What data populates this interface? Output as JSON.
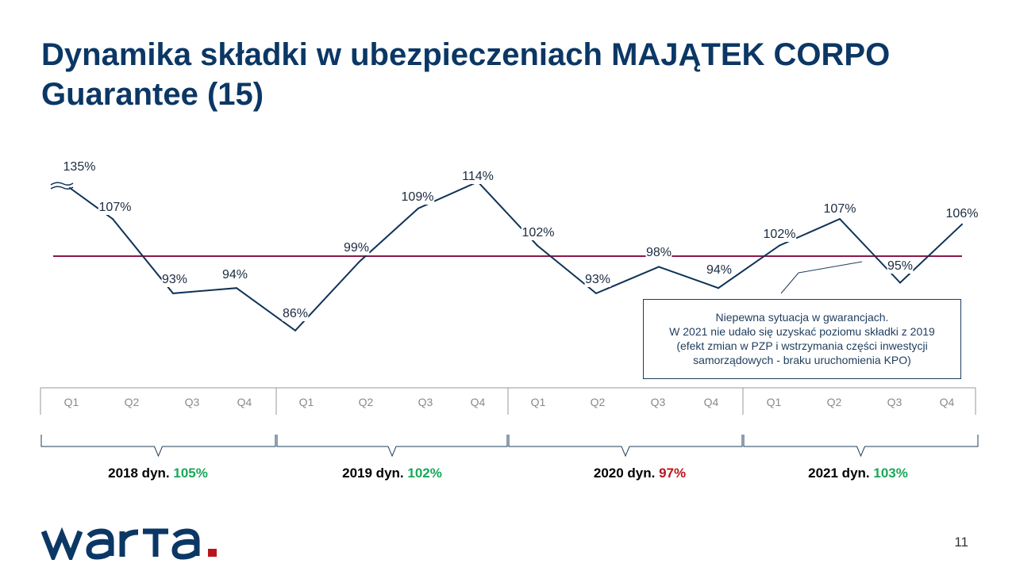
{
  "title": "Dynamika składki w ubezpieczeniach MAJĄTEK CORPO Guarantee (15)",
  "chart_data": {
    "type": "line",
    "categories": [
      "Q1",
      "Q2",
      "Q3",
      "Q4",
      "Q1",
      "Q2",
      "Q3",
      "Q4",
      "Q1",
      "Q2",
      "Q3",
      "Q4",
      "Q1",
      "Q2",
      "Q3",
      "Q4"
    ],
    "values": [
      135,
      107,
      93,
      94,
      86,
      99,
      109,
      114,
      102,
      93,
      98,
      94,
      102,
      107,
      95,
      106
    ],
    "data_labels": [
      "135%",
      "107%",
      "93%",
      "94%",
      "86%",
      "99%",
      "109%",
      "114%",
      "102%",
      "93%",
      "98%",
      "94%",
      "102%",
      "107%",
      "95%",
      "106%"
    ],
    "reference_line": 100,
    "axis_break_on_first_point": true,
    "colors": {
      "series": "#0f3358",
      "reference": "#8b1a4a",
      "axis": "#9a9a9a"
    },
    "groups": [
      {
        "year": "2018",
        "label": "2018 dyn.",
        "value": "105%",
        "status": "good"
      },
      {
        "year": "2019",
        "label": "2019 dyn.",
        "value": "102%",
        "status": "good"
      },
      {
        "year": "2020",
        "label": "2020 dyn.",
        "value": "97%",
        "status": "bad"
      },
      {
        "year": "2021",
        "label": "2021 dyn.",
        "value": "103%",
        "status": "good"
      }
    ],
    "annotation": {
      "lines": [
        "Niepewna sytuacja  w gwarancjach.",
        "W 2021 nie udało się uzyskać  poziomu składki z 2019",
        "(efekt zmian w PZP i wstrzymania  części inwestycji",
        "samorządowych  - braku uruchomienia  KPO)"
      ]
    }
  },
  "logo_text": "warta",
  "page_number": "11"
}
